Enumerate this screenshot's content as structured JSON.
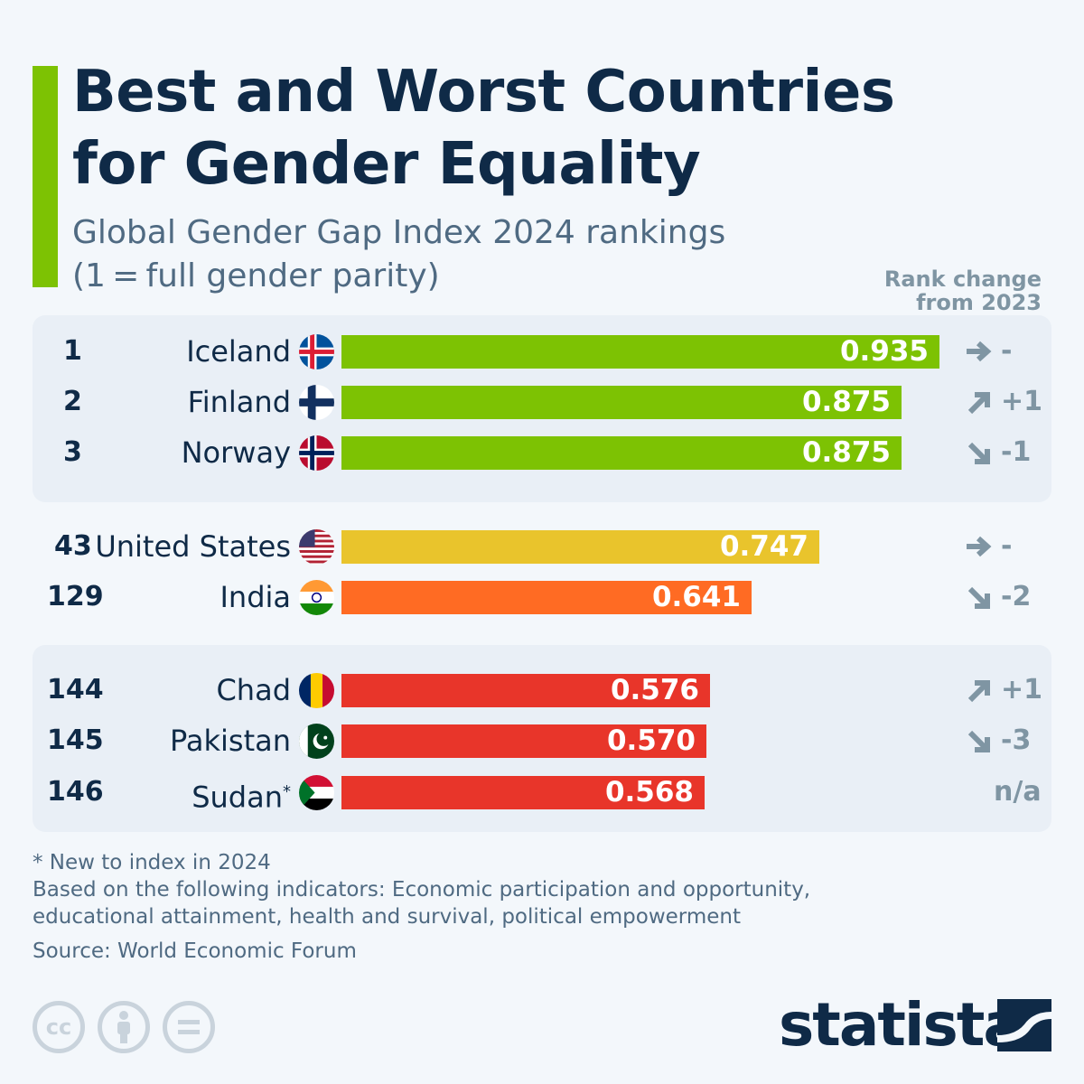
{
  "title": "Best and Worst Countries for Gender Equality",
  "title_line1": "Best and Worst Countries",
  "title_line2": "for Gender Equality",
  "subtitle_line1": "Global Gender Gap Index 2024 rankings",
  "subtitle_line2": "(1 = full gender parity)",
  "rank_change_header_line1": "Rank change",
  "rank_change_header_line2": "from 2023",
  "colors": {
    "top": "#7dc203",
    "us": "#e9c42c",
    "india": "#ff6b23",
    "bottom": "#e8352a",
    "arrow": "#7f95a3"
  },
  "chart_data": {
    "type": "bar",
    "orientation": "horizontal",
    "title": "Best and Worst Countries for Gender Equality",
    "subtitle": "Global Gender Gap Index 2024 rankings (1 = full gender parity)",
    "xlim": [
      0,
      1
    ],
    "grid": false,
    "rows": [
      {
        "rank": "1",
        "country": "Iceland",
        "value": 0.935,
        "label": "0.935",
        "change": "-",
        "direction": "right",
        "color": "#7dc203",
        "flag": "iceland-flag"
      },
      {
        "rank": "2",
        "country": "Finland",
        "value": 0.875,
        "label": "0.875",
        "change": "+1",
        "direction": "up",
        "color": "#7dc203",
        "flag": "finland-flag"
      },
      {
        "rank": "3",
        "country": "Norway",
        "value": 0.875,
        "label": "0.875",
        "change": "-1",
        "direction": "down",
        "color": "#7dc203",
        "flag": "norway-flag"
      },
      {
        "rank": "43",
        "country": "United States",
        "value": 0.747,
        "label": "0.747",
        "change": "-",
        "direction": "right",
        "color": "#e9c42c",
        "flag": "usa-flag"
      },
      {
        "rank": "129",
        "country": "India",
        "value": 0.641,
        "label": "0.641",
        "change": "-2",
        "direction": "down",
        "color": "#ff6b23",
        "flag": "india-flag"
      },
      {
        "rank": "144",
        "country": "Chad",
        "value": 0.576,
        "label": "0.576",
        "change": "+1",
        "direction": "up",
        "color": "#e8352a",
        "flag": "chad-flag"
      },
      {
        "rank": "145",
        "country": "Pakistan",
        "value": 0.57,
        "label": "0.570",
        "change": "-3",
        "direction": "down",
        "color": "#e8352a",
        "flag": "pakistan-flag"
      },
      {
        "rank": "146",
        "country": "Sudan",
        "footnote_mark": "*",
        "value": 0.568,
        "label": "0.568",
        "change": "n/a",
        "direction": "none",
        "color": "#e8352a",
        "flag": "sudan-flag"
      }
    ]
  },
  "footnotes": {
    "new": "* New to index in 2024",
    "indicators_line1": "Based on the following indicators: Economic participation and opportunity,",
    "indicators_line2": "educational attainment, health and survival, political empowerment",
    "source": "Source: World Economic Forum"
  },
  "license_icons": [
    "cc-icon",
    "attribution-icon",
    "no-derivatives-icon"
  ],
  "license_cc_text": "cc",
  "brand": "statista"
}
